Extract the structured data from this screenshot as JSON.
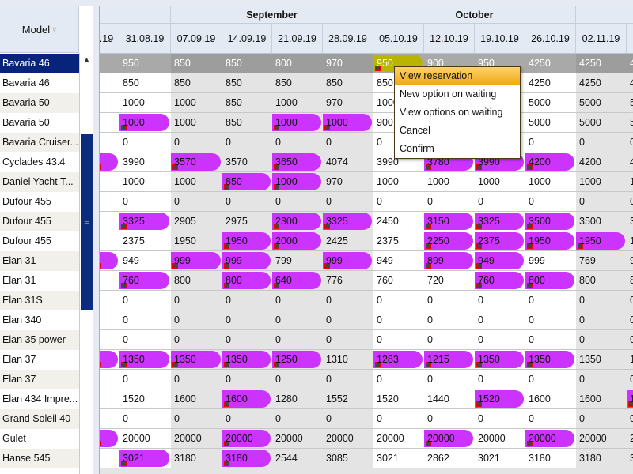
{
  "left": {
    "header": "Model",
    "filter_icon": "filter-icon",
    "models": [
      "Bavaria 46",
      "Bavaria 46",
      "Bavaria 50",
      "Bavaria 50",
      "Bavaria Cruiser...",
      "Cyclades 43.4",
      "Daniel Yacht T...",
      "Dufour 455",
      "Dufour 455",
      "Dufour 455",
      "Elan 31",
      "Elan 31",
      "Elan 31S",
      "Elan 340",
      "Elan 35 power",
      "Elan 37",
      "Elan 37",
      "Elan 434 Impre...",
      "Grand Soleil 40",
      "Gulet",
      "Hanse 545"
    ]
  },
  "months": [
    {
      "label": ""
    },
    {
      "label": "September"
    },
    {
      "label": "October"
    },
    {
      "label": ""
    }
  ],
  "dates": [
    ".19",
    "31.08.19",
    "07.09.19",
    "14.09.19",
    "21.09.19",
    "28.09.19",
    "05.10.19",
    "12.10.19",
    "19.10.19",
    "26.10.19",
    "02.11.19",
    ""
  ],
  "rows": [
    {
      "values": [
        "",
        "950",
        "850",
        "850",
        "800",
        "970",
        "950",
        "900",
        "950",
        "4250",
        "4250",
        "4"
      ],
      "booked": [
        6
      ]
    },
    {
      "values": [
        "",
        "850",
        "850",
        "850",
        "850",
        "850",
        "850",
        "",
        "",
        "4250",
        "4250",
        "4"
      ],
      "booked": []
    },
    {
      "values": [
        "",
        "1000",
        "1000",
        "850",
        "1000",
        "970",
        "1000",
        "",
        "",
        "5000",
        "5000",
        "5"
      ],
      "booked": []
    },
    {
      "values": [
        "",
        "1000",
        "1000",
        "850",
        "1000",
        "1000",
        "900",
        "",
        "",
        "5000",
        "5000",
        "5"
      ],
      "booked": [
        1,
        4,
        5
      ]
    },
    {
      "values": [
        "",
        "0",
        "0",
        "0",
        "0",
        "0",
        "0",
        "",
        "",
        "0",
        "0",
        "0"
      ],
      "booked": []
    },
    {
      "values": [
        "",
        "3990",
        "3570",
        "3570",
        "3650",
        "4074",
        "3990",
        "3780",
        "3990",
        "4200",
        "4200",
        "4"
      ],
      "booked": [
        0,
        2,
        4,
        7,
        8,
        9
      ]
    },
    {
      "values": [
        "",
        "1000",
        "1000",
        "850",
        "1000",
        "970",
        "1000",
        "1000",
        "1000",
        "1000",
        "1000",
        "1"
      ],
      "booked": [
        3,
        4
      ]
    },
    {
      "values": [
        "",
        "0",
        "0",
        "0",
        "0",
        "0",
        "0",
        "0",
        "0",
        "0",
        "0",
        "0"
      ],
      "booked": []
    },
    {
      "values": [
        "",
        "3325",
        "2905",
        "2975",
        "2300",
        "3325",
        "2450",
        "3150",
        "3325",
        "3500",
        "3500",
        "3"
      ],
      "booked": [
        1,
        4,
        5,
        7,
        8,
        9
      ]
    },
    {
      "values": [
        "",
        "2375",
        "1950",
        "1950",
        "2000",
        "2425",
        "2375",
        "2250",
        "2375",
        "1950",
        "1950",
        "1"
      ],
      "booked": [
        3,
        4,
        7,
        8,
        9,
        10
      ]
    },
    {
      "values": [
        "",
        "949",
        "999",
        "999",
        "799",
        "999",
        "949",
        "899",
        "949",
        "999",
        "769",
        "9"
      ],
      "booked": [
        0,
        2,
        3,
        5,
        7,
        8
      ]
    },
    {
      "values": [
        "",
        "760",
        "800",
        "800",
        "640",
        "776",
        "760",
        "720",
        "760",
        "800",
        "800",
        "8"
      ],
      "booked": [
        1,
        3,
        4,
        8,
        9
      ]
    },
    {
      "values": [
        "",
        "0",
        "0",
        "0",
        "0",
        "0",
        "0",
        "0",
        "0",
        "0",
        "0",
        "0"
      ],
      "booked": []
    },
    {
      "values": [
        "",
        "0",
        "0",
        "0",
        "0",
        "0",
        "0",
        "0",
        "0",
        "0",
        "0",
        "0"
      ],
      "booked": []
    },
    {
      "values": [
        "",
        "0",
        "0",
        "0",
        "0",
        "0",
        "0",
        "0",
        "0",
        "0",
        "0",
        "0"
      ],
      "booked": []
    },
    {
      "values": [
        "",
        "1350",
        "1350",
        "1350",
        "1250",
        "1310",
        "1283",
        "1215",
        "1350",
        "1350",
        "1350",
        "1"
      ],
      "booked": [
        0,
        1,
        2,
        3,
        4,
        6,
        7,
        8,
        9
      ]
    },
    {
      "values": [
        "",
        "0",
        "0",
        "0",
        "0",
        "0",
        "0",
        "0",
        "0",
        "0",
        "0",
        "0"
      ],
      "booked": []
    },
    {
      "values": [
        "",
        "1520",
        "1600",
        "1600",
        "1280",
        "1552",
        "1520",
        "1440",
        "1520",
        "1600",
        "1600",
        "1"
      ],
      "booked": [
        3,
        8,
        11
      ]
    },
    {
      "values": [
        "",
        "0",
        "0",
        "0",
        "0",
        "0",
        "0",
        "0",
        "0",
        "0",
        "0",
        "0"
      ],
      "booked": []
    },
    {
      "values": [
        "",
        "20000",
        "20000",
        "20000",
        "20000",
        "20000",
        "20000",
        "20000",
        "20000",
        "20000",
        "20000",
        "2"
      ],
      "booked": [
        0,
        3,
        7,
        9
      ]
    },
    {
      "values": [
        "",
        "3021",
        "3180",
        "3180",
        "2544",
        "3085",
        "3021",
        "2862",
        "3021",
        "3180",
        "3180",
        "3"
      ],
      "booked": [
        1,
        3
      ]
    }
  ],
  "context_menu": [
    "View reservation",
    "New option on waiting",
    "View options on waiting",
    "Cancel",
    "Confirm"
  ],
  "colors": {
    "booked": "#cc33ff",
    "selected_booking": "#b8b400",
    "menu_highlight": "#f0a818",
    "selected_row": "#08247a"
  }
}
